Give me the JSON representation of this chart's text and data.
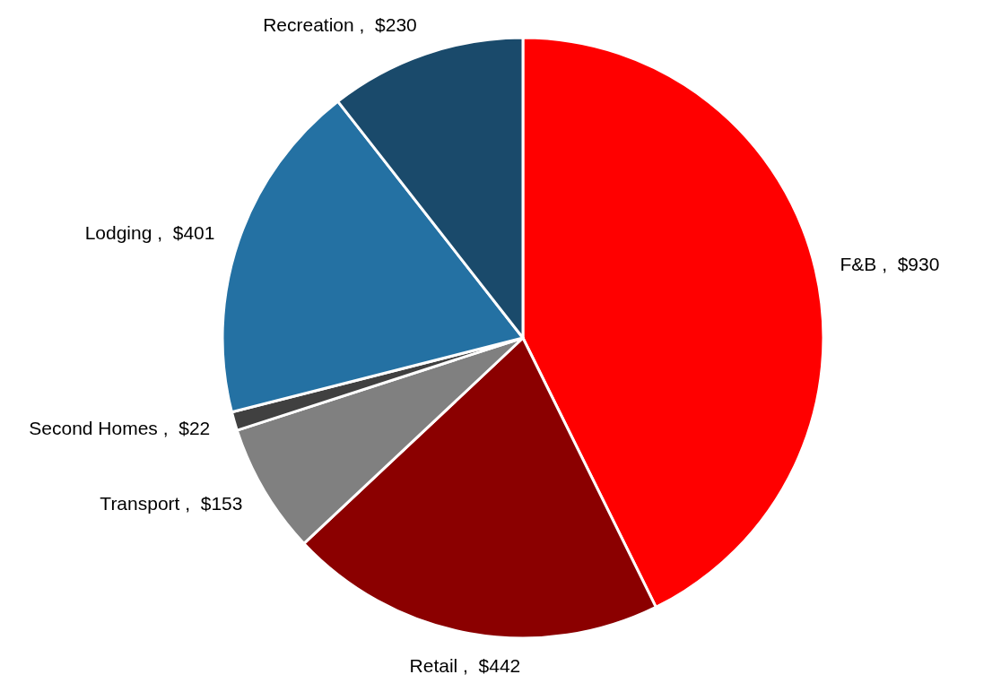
{
  "chart_data": {
    "type": "pie",
    "categories": [
      "F&B",
      "Retail",
      "Transport",
      "Second Homes",
      "Lodging",
      "Recreation"
    ],
    "values": [
      930,
      442,
      153,
      22,
      401,
      230
    ],
    "value_labels": [
      "$930",
      "$442",
      "$153",
      "$22",
      "$401",
      "$230"
    ],
    "colors": [
      "#ff0000",
      "#8b0000",
      "#808080",
      "#404040",
      "#2471a3",
      "#1a4a6b"
    ]
  }
}
